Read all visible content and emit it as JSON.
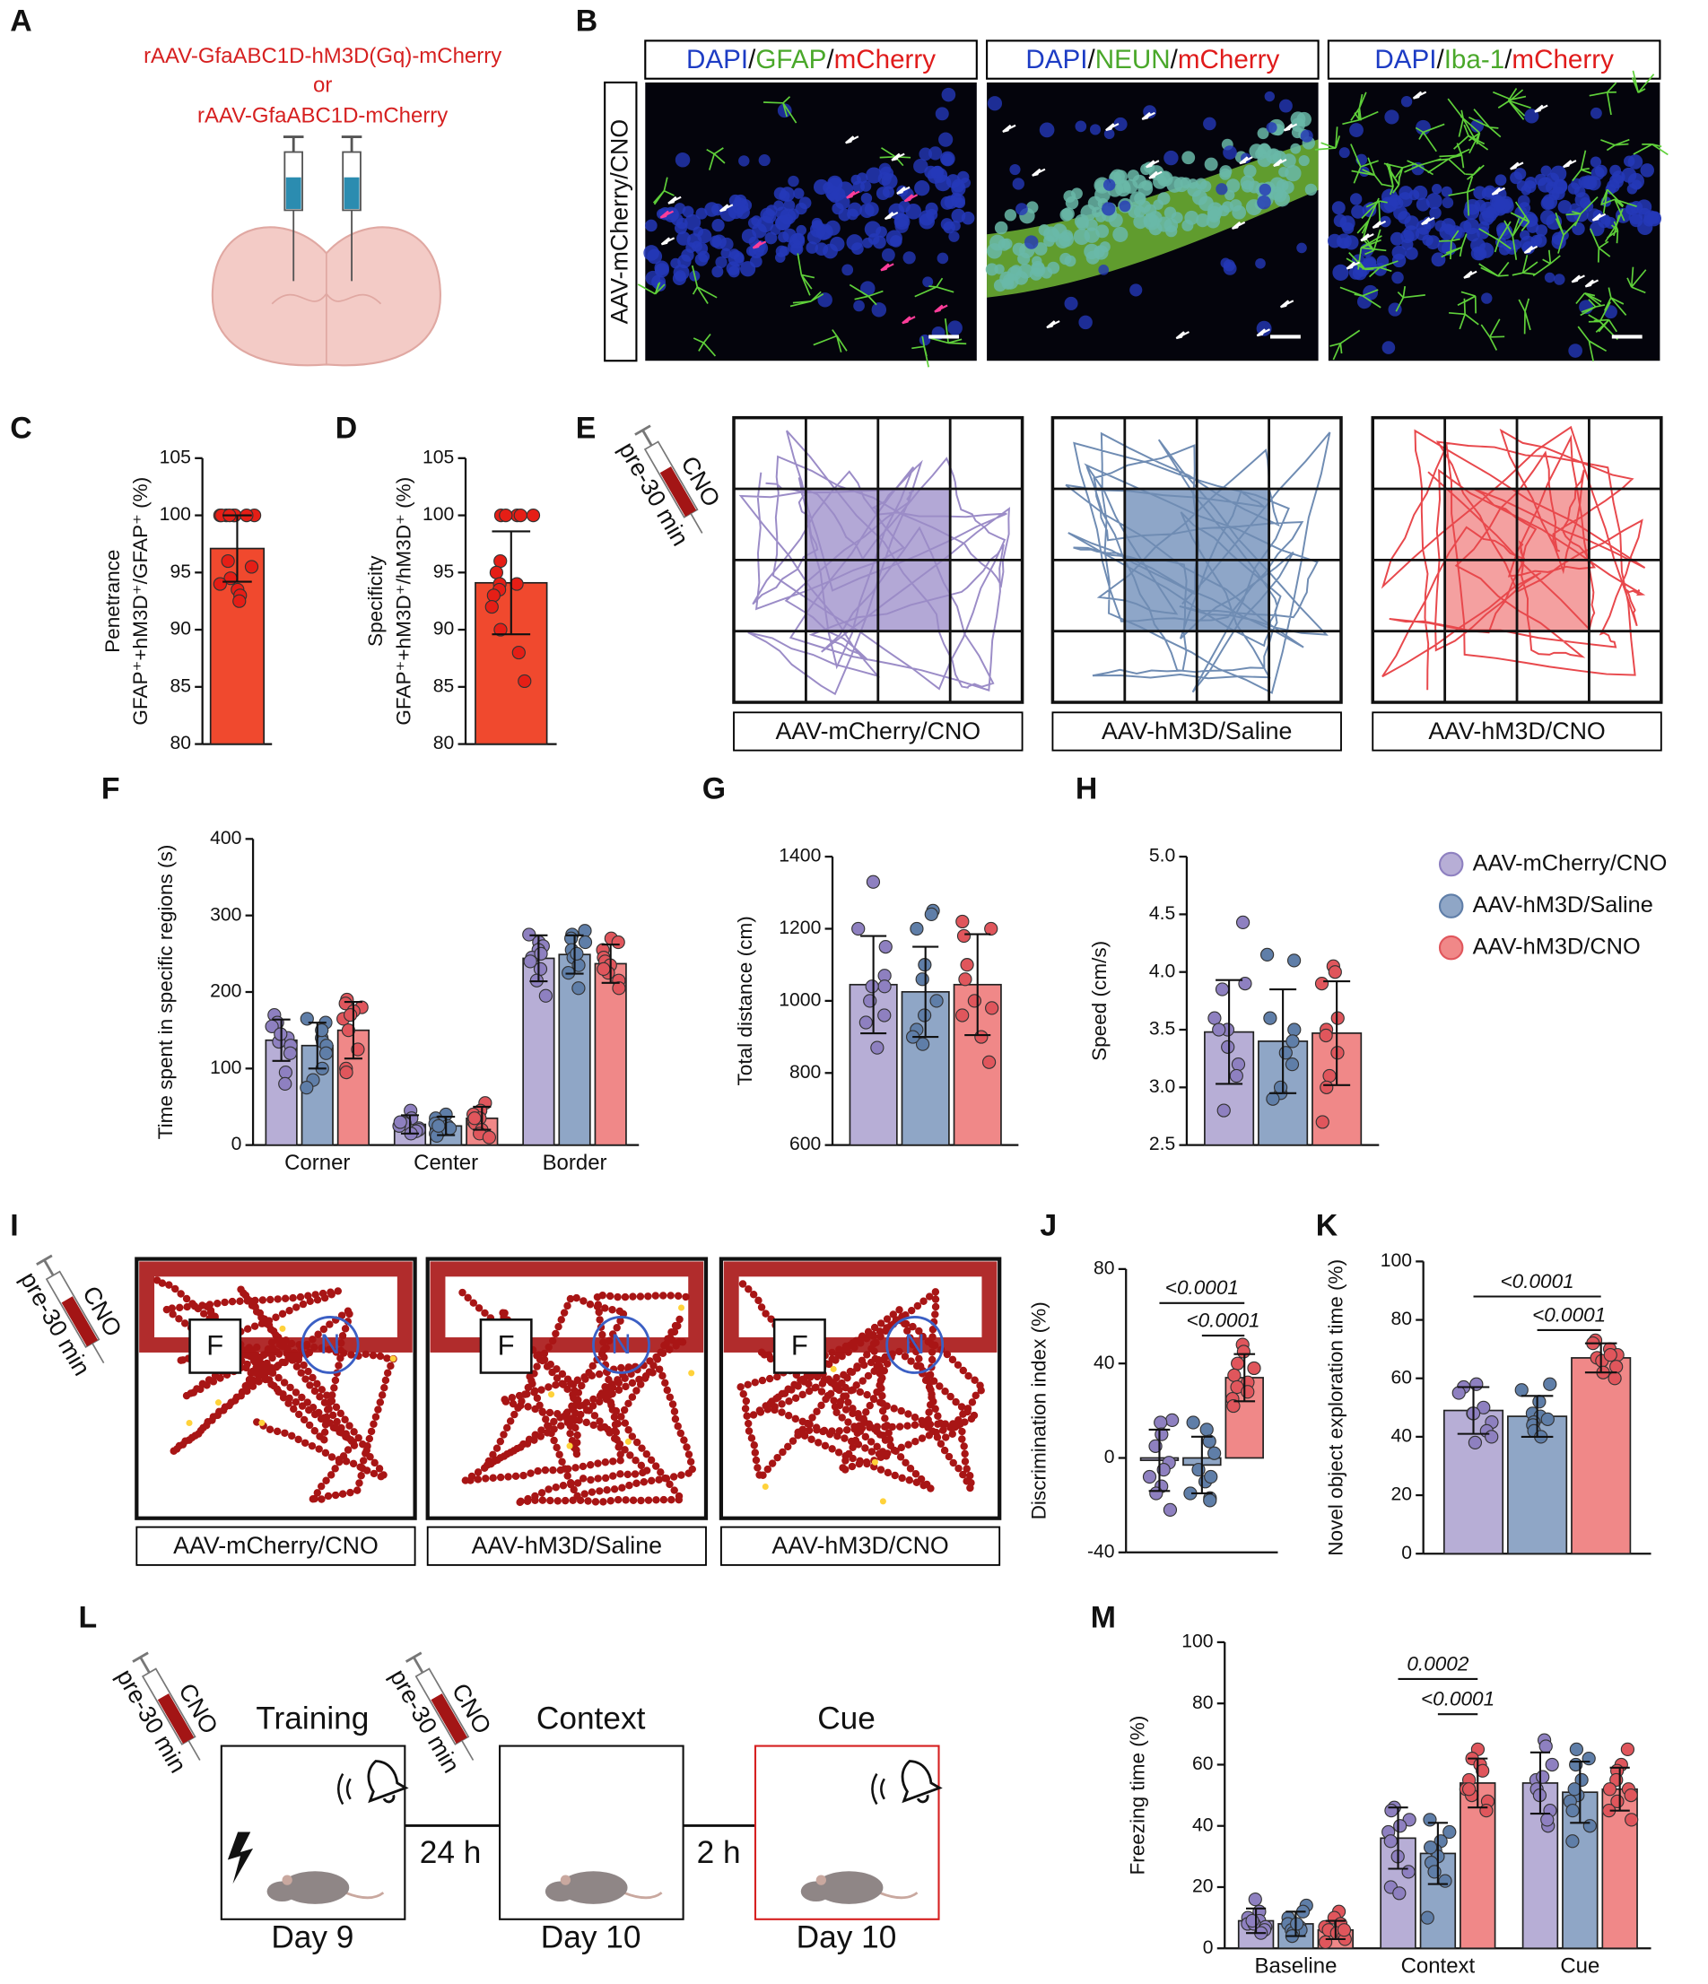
{
  "panel_A": {
    "label": "A",
    "lines": [
      "rAAV-GfaABC1D-hM3D(Gq)-mCherry",
      "or",
      "rAAV-GfaABC1D-mCherry"
    ]
  },
  "panel_B": {
    "label": "B",
    "row_label": "AAV-mCherry/CNO",
    "headers": [
      [
        {
          "text": "DAPI",
          "color": "#1d3cc4"
        },
        {
          "text": "/",
          "color": "#111111"
        },
        {
          "text": "GFAP",
          "color": "#4aa82a"
        },
        {
          "text": "/",
          "color": "#111111"
        },
        {
          "text": "mCherry",
          "color": "#e01b1b"
        }
      ],
      [
        {
          "text": "DAPI",
          "color": "#1d3cc4"
        },
        {
          "text": "/",
          "color": "#111111"
        },
        {
          "text": "NEUN",
          "color": "#4aa82a"
        },
        {
          "text": "/",
          "color": "#111111"
        },
        {
          "text": "mCherry",
          "color": "#e01b1b"
        }
      ],
      [
        {
          "text": "DAPI",
          "color": "#1d3cc4"
        },
        {
          "text": "/",
          "color": "#111111"
        },
        {
          "text": "Iba-1",
          "color": "#4aa82a"
        },
        {
          "text": "/",
          "color": "#111111"
        },
        {
          "text": "mCherry",
          "color": "#e01b1b"
        }
      ]
    ]
  },
  "panel_E": {
    "label": "E",
    "injection": [
      "CNO",
      "pre-30 min"
    ],
    "groups": [
      {
        "name": "AAV-mCherry/CNO",
        "color": "#9b8cc7",
        "shade": "#b3a8d6"
      },
      {
        "name": "AAV-hM3D/Saline",
        "color": "#6f8cb3",
        "shade": "#8ea6c8"
      },
      {
        "name": "AAV-hM3D/CNO",
        "color": "#e8484c",
        "shade": "#f4a0a0"
      }
    ]
  },
  "panel_I": {
    "label": "I",
    "injection": [
      "CNO",
      "pre-30 min"
    ],
    "objects": [
      "F",
      "N"
    ],
    "groups": [
      "AAV-mCherry/CNO",
      "AAV-hM3D/Saline",
      "AAV-hM3D/CNO"
    ]
  },
  "panel_L": {
    "label": "L",
    "injections": [
      [
        "CNO",
        "pre-30 min"
      ],
      [
        "CNO",
        "pre-30 min"
      ]
    ],
    "phases": [
      {
        "title": "Training",
        "day": "Day 9"
      },
      {
        "title": "Context",
        "day": "Day 10"
      },
      {
        "title": "Cue",
        "day": "Day 10"
      }
    ],
    "intervals": [
      "24 h",
      "2 h"
    ]
  },
  "chart_data": [
    {
      "type": "bar",
      "label": "C",
      "ylabel": [
        "Penetrance",
        "GFAP⁺+hM3D⁺/GFAP⁺ (%)"
      ],
      "ylim": [
        80,
        105
      ],
      "yticks": [
        80,
        85,
        90,
        95,
        100,
        105
      ],
      "color": "#f0492e",
      "point_color": "#e51e16",
      "values": [
        97.1
      ],
      "errors": [
        2.9
      ],
      "points": [
        [
          100,
          100,
          100,
          100,
          100,
          100,
          100,
          100,
          96,
          95.5,
          94.5,
          94,
          93.5,
          93,
          92.5
        ]
      ]
    },
    {
      "type": "bar",
      "label": "D",
      "ylabel": [
        "Specificity",
        "GFAP⁺+hM3D⁺/hM3D⁺  (%)"
      ],
      "ylim": [
        80,
        105
      ],
      "yticks": [
        80,
        85,
        90,
        95,
        100,
        105
      ],
      "color": "#f0492e",
      "point_color": "#e51e16",
      "values": [
        94.1
      ],
      "errors": [
        4.5
      ],
      "points": [
        [
          100,
          100,
          100,
          100,
          100,
          96,
          95,
          94,
          94,
          93.5,
          93,
          92,
          90,
          88,
          85.5
        ]
      ]
    },
    {
      "type": "bar",
      "label": "F",
      "ylabel": "Time spent in specific regions (s)",
      "ylim": [
        0,
        400
      ],
      "yticks": [
        0,
        100,
        200,
        300,
        400
      ],
      "categories": [
        "Corner",
        "Center",
        "Border"
      ],
      "series": [
        {
          "name": "AAV-mCherry/CNO",
          "color": "#b7aed6",
          "point_color": "#8e80c0",
          "values": [
            137,
            27,
            244
          ],
          "errors": [
            27,
            12,
            30
          ],
          "points": [
            [
              170,
              160,
              155,
              140,
              135,
              130,
              120,
              95,
              80,
              145
            ],
            [
              45,
              35,
              30,
              28,
              25,
              22,
              20,
              18,
              15,
              30
            ],
            [
              275,
              265,
              260,
              255,
              245,
              240,
              230,
              215,
              195,
              250
            ]
          ]
        },
        {
          "name": "AAV-hM3D/Saline",
          "color": "#8fa6c6",
          "point_color": "#5f7ea8",
          "values": [
            130,
            25,
            249
          ],
          "errors": [
            30,
            12,
            25
          ],
          "points": [
            [
              165,
              160,
              140,
              135,
              130,
              120,
              100,
              85,
              75,
              150
            ],
            [
              40,
              35,
              30,
              28,
              25,
              22,
              18,
              15,
              12,
              25
            ],
            [
              280,
              275,
              270,
              265,
              255,
              245,
              235,
              225,
              205,
              250
            ]
          ]
        },
        {
          "name": "AAV-hM3D/CNO",
          "color": "#f08888",
          "point_color": "#e0565c",
          "values": [
            150,
            35,
            237
          ],
          "errors": [
            37,
            15,
            25
          ],
          "points": [
            [
              190,
              185,
              180,
              175,
              165,
              150,
              125,
              100,
              95,
              170
            ],
            [
              55,
              45,
              40,
              35,
              30,
              28,
              20,
              15,
              10,
              35
            ],
            [
              270,
              265,
              255,
              245,
              240,
              235,
              225,
              215,
              205,
              230
            ]
          ]
        }
      ]
    },
    {
      "type": "bar",
      "label": "G",
      "ylabel": "Total distance (cm)",
      "ylim": [
        600,
        1400
      ],
      "yticks": [
        600,
        800,
        1000,
        1200,
        1400
      ],
      "series": [
        {
          "name": "AAV-mCherry/CNO",
          "color": "#b7aed6",
          "point_color": "#8e80c0",
          "values": [
            1045
          ],
          "errors": [
            135
          ],
          "points": [
            [
              1330,
              1200,
              1150,
              1070,
              1040,
              1000,
              960,
              940,
              870,
              1040
            ]
          ]
        },
        {
          "name": "AAV-hM3D/Saline",
          "color": "#8fa6c6",
          "point_color": "#5f7ea8",
          "values": [
            1025
          ],
          "errors": [
            125
          ],
          "points": [
            [
              1250,
              1240,
              1200,
              1100,
              1060,
              1000,
              960,
              920,
              880,
              900
            ]
          ]
        },
        {
          "name": "AAV-hM3D/CNO",
          "color": "#f08888",
          "point_color": "#e0565c",
          "values": [
            1045
          ],
          "errors": [
            140
          ],
          "points": [
            [
              1220,
              1200,
              1180,
              1100,
              1060,
              1000,
              960,
              900,
              830,
              980
            ]
          ]
        }
      ]
    },
    {
      "type": "bar",
      "label": "H",
      "ylabel": "Speed (cm/s)",
      "legend": "right",
      "ylim": [
        2.5,
        5.0
      ],
      "yticks": [
        2.5,
        {
          "value": 3,
          "label": "3.0"
        },
        3.5,
        {
          "value": 4,
          "label": "4.0"
        },
        4.5,
        {
          "value": 5,
          "label": "5.0"
        }
      ],
      "series": [
        {
          "name": "AAV-mCherry/CNO",
          "color": "#b7aed6",
          "point_color": "#8e80c0",
          "values": [
            3.48
          ],
          "errors": [
            0.45
          ],
          "points": [
            [
              4.43,
              3.9,
              3.85,
              3.6,
              3.5,
              3.35,
              3.2,
              3.1,
              2.8,
              3.5
            ]
          ]
        },
        {
          "name": "AAV-hM3D/Saline",
          "color": "#8fa6c6",
          "point_color": "#5f7ea8",
          "values": [
            3.4
          ],
          "errors": [
            0.45
          ],
          "points": [
            [
              4.15,
              4.1,
              3.6,
              3.5,
              3.4,
              3.3,
              3.2,
              2.95,
              2.9,
              3.0
            ]
          ]
        },
        {
          "name": "AAV-hM3D/CNO",
          "color": "#f08888",
          "point_color": "#e0565c",
          "values": [
            3.47
          ],
          "errors": [
            0.45
          ],
          "points": [
            [
              4.05,
              4.0,
              3.9,
              3.6,
              3.5,
              3.3,
              3.1,
              3.0,
              2.7,
              3.45
            ]
          ]
        }
      ]
    },
    {
      "type": "bar",
      "label": "J",
      "ylabel": "Discrimination index (%)",
      "ylim": [
        -40,
        80
      ],
      "yticks": [
        -40,
        0,
        40,
        80
      ],
      "series": [
        {
          "name": "AAV-mCherry/CNO",
          "color": "#b7aed6",
          "point_color": "#8e80c0",
          "values": [
            -1
          ],
          "errors": [
            13
          ],
          "points": [
            [
              16,
              15,
              10,
              5,
              -2,
              -8,
              -12,
              -22,
              -5,
              -15
            ]
          ]
        },
        {
          "name": "AAV-hM3D/Saline",
          "color": "#8fa6c6",
          "point_color": "#5f7ea8",
          "values": [
            -3
          ],
          "errors": [
            12
          ],
          "points": [
            [
              15,
              12,
              7,
              2,
              -5,
              -10,
              -15,
              -17,
              -18,
              -8
            ]
          ]
        },
        {
          "name": "AAV-hM3D/CNO",
          "color": "#f08888",
          "point_color": "#e0565c",
          "values": [
            34
          ],
          "errors": [
            10
          ],
          "points": [
            [
              48,
              45,
              40,
              35,
              32,
              30,
              28,
              25,
              22,
              38
            ]
          ]
        }
      ],
      "comparisons": [
        {
          "label": "<0.0001",
          "between": [
            "AAV-mCherry/CNO",
            "AAV-hM3D/CNO"
          ]
        },
        {
          "label": "<0.0001",
          "between": [
            "AAV-hM3D/Saline",
            "AAV-hM3D/CNO"
          ]
        }
      ]
    },
    {
      "type": "bar",
      "label": "K",
      "ylabel": "Novel object exploration time (%)",
      "ylim": [
        0,
        100
      ],
      "yticks": [
        0,
        20,
        40,
        60,
        80,
        100
      ],
      "series": [
        {
          "name": "AAV-mCherry/CNO",
          "color": "#b7aed6",
          "point_color": "#8e80c0",
          "values": [
            49
          ],
          "errors": [
            8
          ],
          "points": [
            [
              58,
              57,
              55,
              50,
              48,
              45,
              42,
              40,
              38,
              48
            ]
          ]
        },
        {
          "name": "AAV-hM3D/Saline",
          "color": "#8fa6c6",
          "point_color": "#5f7ea8",
          "values": [
            47
          ],
          "errors": [
            7
          ],
          "points": [
            [
              58,
              56,
              52,
              48,
              47,
              45,
              44,
              42,
              40,
              46
            ]
          ]
        },
        {
          "name": "AAV-hM3D/CNO",
          "color": "#f08888",
          "point_color": "#e0565c",
          "values": [
            67
          ],
          "errors": [
            5
          ],
          "points": [
            [
              73,
              72,
              70,
              68,
              67,
              66,
              64,
              62,
              60,
              68
            ]
          ]
        }
      ],
      "comparisons": [
        {
          "label": "<0.0001",
          "between": [
            "AAV-mCherry/CNO",
            "AAV-hM3D/CNO"
          ]
        },
        {
          "label": "<0.0001",
          "between": [
            "AAV-hM3D/Saline",
            "AAV-hM3D/CNO"
          ]
        }
      ]
    },
    {
      "type": "bar",
      "label": "M",
      "ylabel": "Freezing time (%)",
      "ylim": [
        0,
        100
      ],
      "yticks": [
        0,
        20,
        40,
        60,
        80,
        100
      ],
      "categories": [
        "Baseline",
        "Context",
        "Cue"
      ],
      "series": [
        {
          "name": "AAV-mCherry/CNO",
          "color": "#b7aed6",
          "point_color": "#8e80c0",
          "values": [
            9,
            36,
            54
          ],
          "errors": [
            4,
            10,
            10
          ],
          "points": [
            [
              16,
              12,
              10,
              9,
              8,
              8,
              7,
              6,
              5,
              9
            ],
            [
              46,
              45,
              42,
              38,
              35,
              30,
              25,
              20,
              18,
              40
            ],
            [
              68,
              66,
              60,
              55,
              52,
              50,
              45,
              40,
              42,
              56
            ]
          ]
        },
        {
          "name": "AAV-hM3D/Saline",
          "color": "#8fa6c6",
          "point_color": "#5f7ea8",
          "values": [
            8,
            31,
            51
          ],
          "errors": [
            4,
            10,
            10
          ],
          "points": [
            [
              14,
              12,
              10,
              8,
              7,
              6,
              6,
              5,
              4,
              8
            ],
            [
              42,
              38,
              35,
              32,
              30,
              28,
              25,
              22,
              10,
              33
            ],
            [
              65,
              62,
              60,
              55,
              50,
              48,
              45,
              40,
              35,
              52
            ]
          ]
        },
        {
          "name": "AAV-hM3D/CNO",
          "color": "#f08888",
          "point_color": "#e0565c",
          "values": [
            6,
            54,
            52
          ],
          "errors": [
            3,
            8,
            7
          ],
          "points": [
            [
              12,
              10,
              8,
              7,
              6,
              5,
              4,
              3,
              2,
              6
            ],
            [
              65,
              62,
              60,
              58,
              55,
              52,
              50,
              48,
              45,
              52
            ],
            [
              65,
              60,
              58,
              55,
              52,
              50,
              48,
              45,
              42,
              52
            ]
          ]
        }
      ],
      "comparisons": [
        {
          "label": "0.0002",
          "category": "Context",
          "between": [
            "AAV-mCherry/CNO",
            "AAV-hM3D/CNO"
          ]
        },
        {
          "label": "<0.0001",
          "category": "Context",
          "between": [
            "AAV-hM3D/Saline",
            "AAV-hM3D/CNO"
          ]
        }
      ]
    }
  ]
}
